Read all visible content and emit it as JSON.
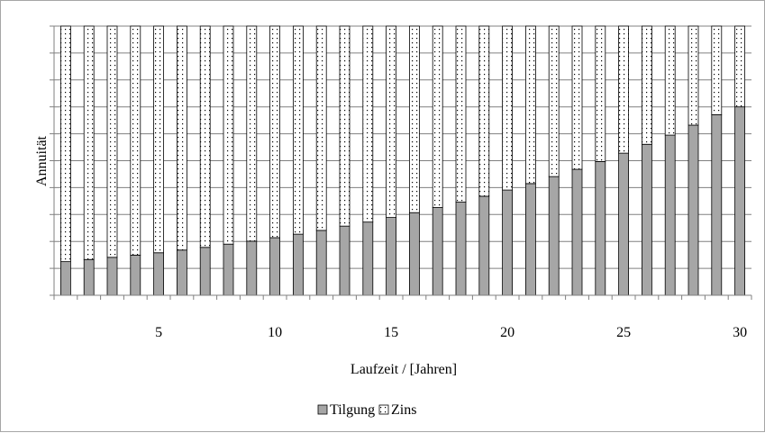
{
  "chart_data": {
    "type": "bar",
    "stacked": true,
    "x": [
      1,
      2,
      3,
      4,
      5,
      6,
      7,
      8,
      9,
      10,
      11,
      12,
      13,
      14,
      15,
      16,
      17,
      18,
      19,
      20,
      21,
      22,
      23,
      24,
      25,
      26,
      27,
      28,
      29,
      30
    ],
    "x_tick_labels": [
      "5",
      "10",
      "15",
      "20",
      "25",
      "30"
    ],
    "x_tick_values": [
      5,
      10,
      15,
      20,
      25,
      30
    ],
    "xlabel": "Laufzeit / [Jahren]",
    "ylabel": "Annuität",
    "ylim": [
      0,
      1
    ],
    "y_tick_labels_visible": false,
    "grid": true,
    "series": [
      {
        "name": "Tilgung",
        "color": "#a6a6a6",
        "pattern": "solid",
        "values": [
          0.125,
          0.133,
          0.141,
          0.149,
          0.158,
          0.168,
          0.178,
          0.19,
          0.201,
          0.214,
          0.227,
          0.241,
          0.257,
          0.272,
          0.289,
          0.307,
          0.326,
          0.346,
          0.368,
          0.391,
          0.415,
          0.441,
          0.468,
          0.497,
          0.528,
          0.561,
          0.595,
          0.632,
          0.671,
          0.7
        ]
      },
      {
        "name": "Zins",
        "color": "#ffffff",
        "pattern": "dots",
        "values": [
          0.875,
          0.867,
          0.859,
          0.851,
          0.842,
          0.832,
          0.822,
          0.81,
          0.799,
          0.786,
          0.773,
          0.759,
          0.743,
          0.728,
          0.711,
          0.693,
          0.674,
          0.654,
          0.632,
          0.609,
          0.585,
          0.559,
          0.532,
          0.503,
          0.472,
          0.439,
          0.405,
          0.368,
          0.329,
          0.3
        ]
      }
    ],
    "legend": {
      "position": "bottom",
      "entries": [
        "Tilgung",
        "Zins"
      ]
    }
  }
}
